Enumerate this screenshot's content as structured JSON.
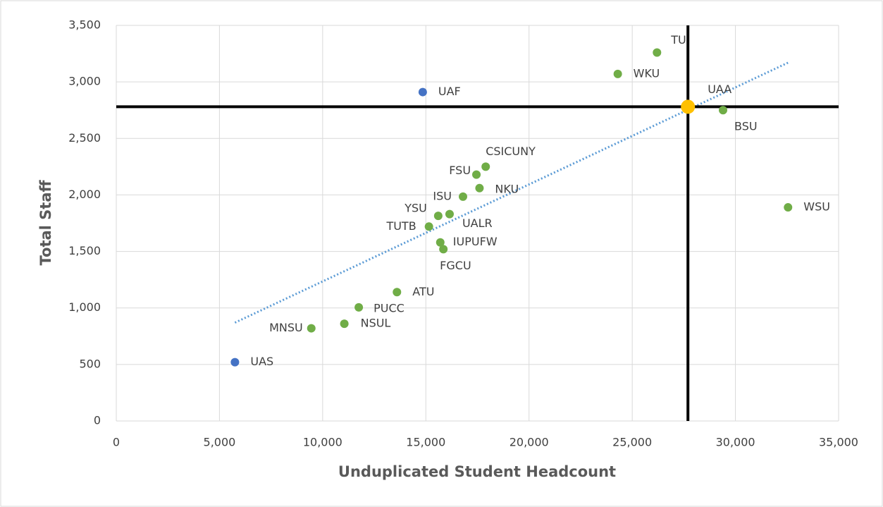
{
  "chart_data": {
    "type": "scatter",
    "x_label": "Unduplicated Student Headcount",
    "y_label": "Total Staff",
    "labels": [
      "UAS",
      "UAF",
      "TU",
      "WKU",
      "UAA",
      "BSU",
      "WSU",
      "CSICUNY",
      "FSU",
      "NKU",
      "ISU",
      "YSU",
      "UALR",
      "TUTB",
      "IUPUFW",
      "FGCU",
      "ATU",
      "PUCC",
      "NSUL",
      "MNSU"
    ],
    "x": [
      5750,
      14850,
      26200,
      24300,
      27700,
      29400,
      32550,
      17900,
      17450,
      17600,
      16800,
      15600,
      16150,
      15150,
      15700,
      15850,
      13600,
      11750,
      11050,
      9450
    ],
    "y": [
      520,
      2910,
      3260,
      3070,
      2780,
      2750,
      1890,
      2250,
      2180,
      2060,
      1985,
      1815,
      1830,
      1720,
      1580,
      1520,
      1140,
      1005,
      860,
      820
    ],
    "colors": [
      "#4472c4",
      "#4472c4",
      "#70ad47",
      "#70ad47",
      "#ffc000",
      "#70ad47",
      "#70ad47",
      "#70ad47",
      "#70ad47",
      "#70ad47",
      "#70ad47",
      "#70ad47",
      "#70ad47",
      "#70ad47",
      "#70ad47",
      "#70ad47",
      "#70ad47",
      "#70ad47",
      "#70ad47",
      "#70ad47"
    ],
    "marker_sizes": [
      6,
      6,
      6,
      6,
      10,
      6,
      6,
      6,
      6,
      6,
      6,
      6,
      6,
      6,
      6,
      6,
      6,
      6,
      6,
      6
    ],
    "trendline": {
      "x": [
        5750,
        32550
      ],
      "y": [
        870,
        3170
      ],
      "color": "#5b9bd5",
      "style": "dotted"
    },
    "reference_lines": {
      "x": 27700,
      "y": 2780,
      "color": "#000000"
    },
    "xlim": [
      0,
      35000
    ],
    "xticks": [
      0,
      {
        "value": 5000,
        "label": "5,000"
      },
      {
        "value": 10000,
        "label": "10,000"
      },
      {
        "value": 15000,
        "label": "15,000"
      },
      {
        "value": 20000,
        "label": "20,000"
      },
      {
        "value": 25000,
        "label": "25,000"
      },
      {
        "value": 30000,
        "label": "30,000"
      },
      {
        "value": 35000,
        "label": "35,000"
      }
    ],
    "ylim": [
      0,
      3500
    ],
    "yticks": [
      0,
      500,
      {
        "value": 1000,
        "label": "1,000"
      },
      {
        "value": 1500,
        "label": "1,500"
      },
      {
        "value": 2000,
        "label": "2,000"
      },
      {
        "value": 2500,
        "label": "2,500"
      },
      {
        "value": 3000,
        "label": "3,000"
      },
      {
        "value": 3500,
        "label": "3,500"
      }
    ],
    "grid": true
  }
}
